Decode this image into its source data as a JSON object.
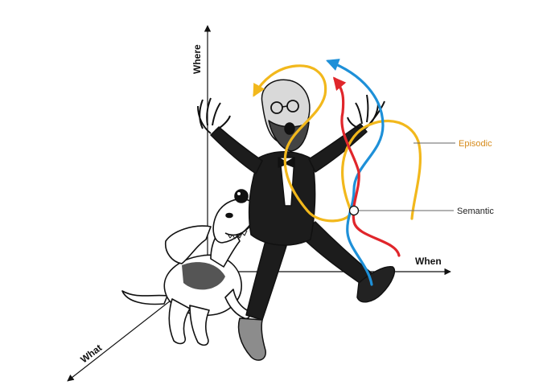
{
  "axes": {
    "where": "Where",
    "when": "When",
    "what": "What"
  },
  "callouts": {
    "episodic": "Episodic",
    "semantic": "Semantic"
  },
  "colors": {
    "episodic": "#f2b81c",
    "episodic_label": "#d68a1a",
    "semantic_blue": "#1e90d8",
    "semantic_red": "#e0262b",
    "ink": "#111111"
  },
  "illustration": {
    "figure": "dancing-man-in-tuxedo",
    "companion": "cartoon-dog"
  }
}
